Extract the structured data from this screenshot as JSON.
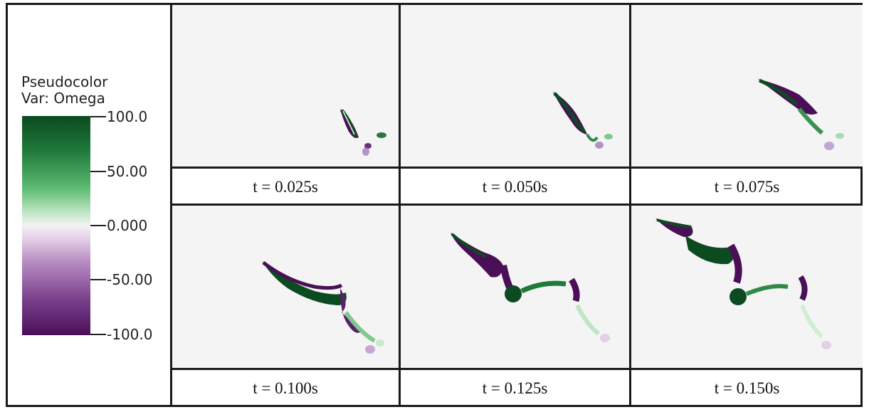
{
  "legend": {
    "title_line1": "Pseudocolor",
    "title_line2": "Var: Omega",
    "ticks": [
      "100.0",
      "50.00",
      "0.000",
      "-50.00",
      "-100.0"
    ],
    "colormap": {
      "max_color": "#0c4a20",
      "mid_color": "#f4f1f4",
      "min_color": "#4a0f57"
    }
  },
  "panels": [
    {
      "caption": "t = 0.025s"
    },
    {
      "caption": "t = 0.050s"
    },
    {
      "caption": "t = 0.075s"
    },
    {
      "caption": "t = 0.100s"
    },
    {
      "caption": "t = 0.125s"
    },
    {
      "caption": "t = 0.150s"
    }
  ]
}
